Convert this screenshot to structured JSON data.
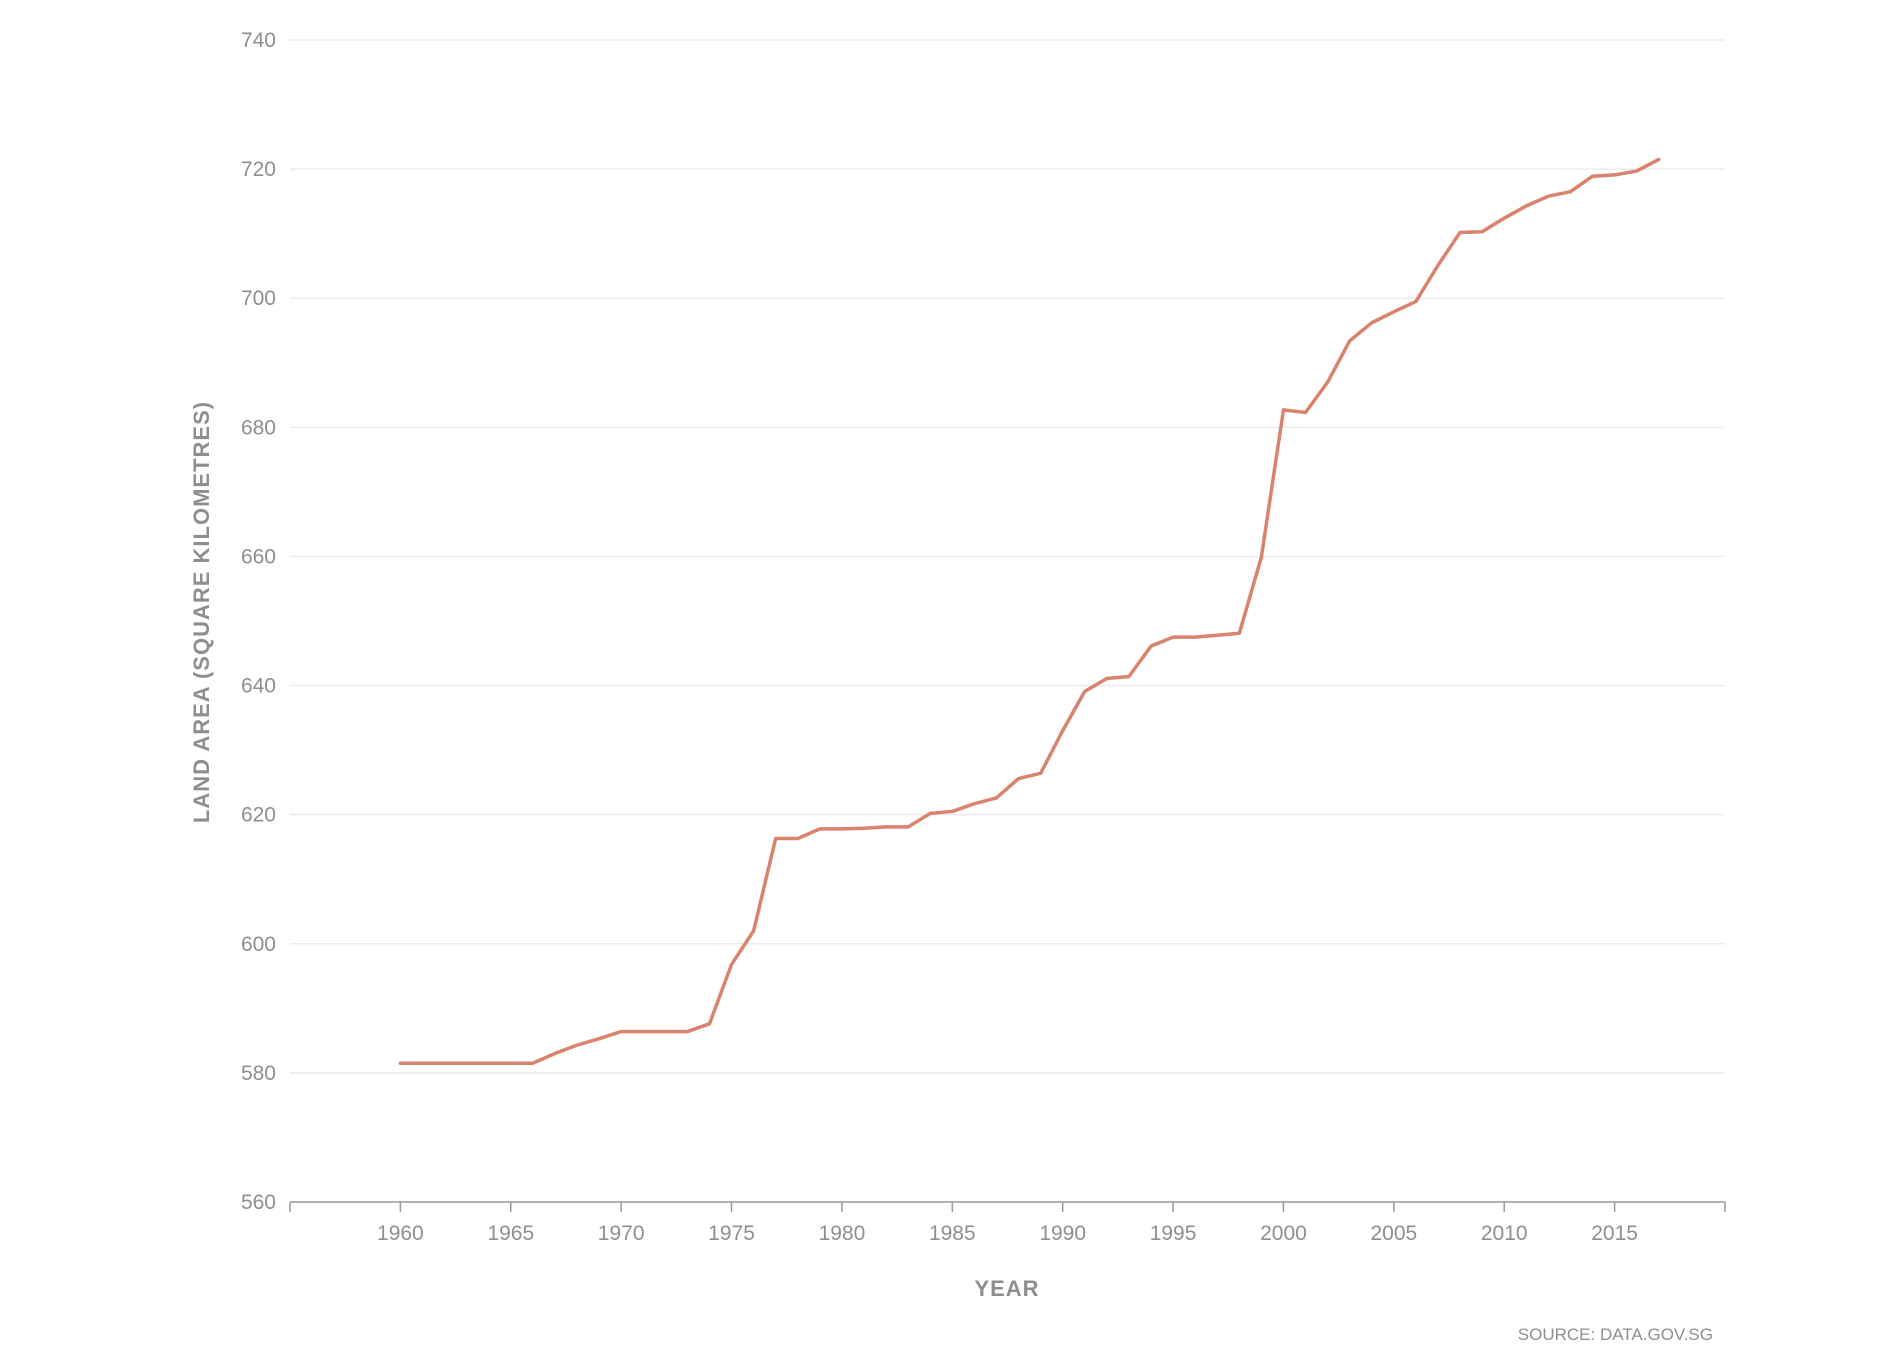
{
  "chart_data": {
    "type": "line",
    "xlabel": "YEAR",
    "ylabel": "LAND AREA (SQUARE KILOMETRES)",
    "source": "SOURCE: DATA.GOV.SG",
    "xlim": [
      1955,
      2020
    ],
    "ylim": [
      560,
      740
    ],
    "xticks": [
      1960,
      1965,
      1970,
      1975,
      1980,
      1985,
      1990,
      1995,
      2000,
      2005,
      2010,
      2015
    ],
    "yticks": [
      560,
      580,
      600,
      620,
      640,
      660,
      680,
      700,
      720,
      740
    ],
    "grid": true,
    "line_color": "#d9826c",
    "series": [
      {
        "x": [
          1960,
          1961,
          1962,
          1963,
          1964,
          1965,
          1966,
          1967,
          1968,
          1969,
          1970,
          1971,
          1972,
          1973,
          1974,
          1975,
          1976,
          1977,
          1978,
          1979,
          1980,
          1981,
          1982,
          1983,
          1984,
          1985,
          1986,
          1987,
          1988,
          1989,
          1990,
          1991,
          1992,
          1993,
          1994,
          1995,
          1996,
          1997,
          1998,
          1999,
          2000,
          2001,
          2002,
          2003,
          2004,
          2005,
          2006,
          2007,
          2008,
          2009,
          2010,
          2011,
          2012,
          2013,
          2014,
          2015,
          2016,
          2017
        ],
        "values": [
          581.5,
          581.5,
          581.5,
          581.5,
          581.5,
          581.5,
          581.5,
          583.0,
          584.3,
          585.3,
          586.4,
          586.4,
          586.4,
          586.4,
          587.6,
          596.8,
          602.0,
          616.3,
          616.3,
          617.8,
          617.8,
          617.9,
          618.1,
          618.1,
          620.2,
          620.5,
          621.7,
          622.6,
          625.6,
          626.4,
          633.0,
          639.1,
          641.1,
          641.4,
          646.1,
          647.5,
          647.5,
          647.8,
          648.1,
          659.9,
          682.7,
          682.3,
          687.0,
          693.4,
          696.2,
          697.9,
          699.5,
          705.1,
          710.2,
          710.3,
          712.4,
          714.3,
          715.8,
          716.5,
          718.9,
          719.1,
          719.7,
          721.5
        ]
      }
    ]
  }
}
